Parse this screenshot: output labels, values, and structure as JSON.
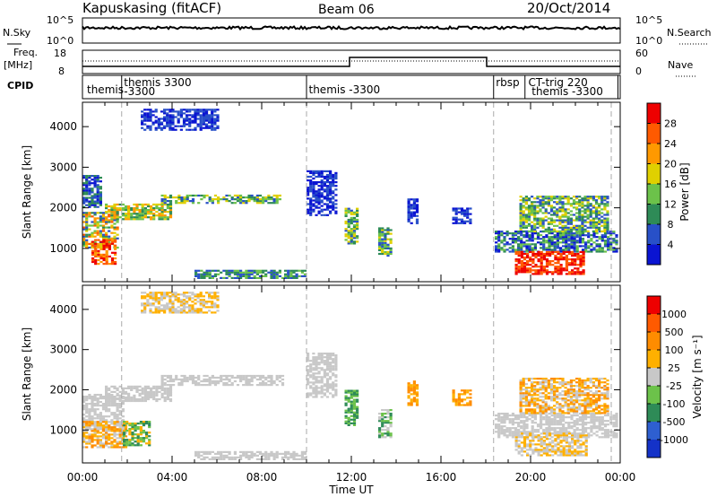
{
  "header": {
    "station": "Kapuskasing (fitACF)",
    "beam": "Beam 06",
    "date": "20/Oct/2014"
  },
  "strip_labels": {
    "nsky": "N.Sky",
    "nsky_ticks": [
      "10^5",
      "10^0"
    ],
    "nsearch": "N.Search",
    "nsearch_ticks": [
      "10^5",
      "10^0"
    ],
    "freq": "Freq.",
    "freq_unit": "[MHz]",
    "freq_ticks": [
      "18",
      "8"
    ],
    "nave": "Nave",
    "nave_ticks": [
      "60",
      "0"
    ],
    "cpid": "CPID"
  },
  "cpid_labels": [
    {
      "text": "themis",
      "t": 0.2
    },
    {
      "text": "themis 3300",
      "t": 1.85
    },
    {
      "text": "-3300",
      "t": 1.85
    },
    {
      "text": "themis -3300",
      "t": 10.1
    },
    {
      "text": "rbsp",
      "t": 18.45
    },
    {
      "text": "CT-trig 220",
      "t": 19.9
    },
    {
      "text": "themis -3300",
      "t": 20.05
    }
  ],
  "cpid_changes": [
    1.75,
    10.0,
    18.35,
    19.75,
    23.9
  ],
  "colors": {
    "power": [
      "#0a14d2",
      "#2850c8",
      "#2e8b57",
      "#6cc24a",
      "#e0d000",
      "#ff9900",
      "#ff5a00",
      "#ee0000"
    ],
    "velocity": [
      "#1432c8",
      "#2e5fd0",
      "#2e8b57",
      "#6cc24a",
      "#c8c8c8",
      "#ffb000",
      "#ff8c00",
      "#ff5a00",
      "#ee0000"
    ],
    "ground_scatter": "#c8c8c8"
  },
  "chart_data": [
    {
      "type": "heatmap",
      "name": "power",
      "ylabel": "Slant Range [km]",
      "yticks": [
        "1000",
        "2000",
        "3000",
        "4000"
      ],
      "ylim": [
        180,
        4600
      ],
      "xlim": [
        0,
        24
      ],
      "colorbar_label": "Power [dB]",
      "colorbar_ticks": [
        "4",
        "8",
        "12",
        "16",
        "20",
        "24",
        "28"
      ],
      "regions": [
        {
          "t0": 0.0,
          "t1": 1.6,
          "r0": 1000,
          "r1": 1900,
          "levels": [
            1,
            2,
            3,
            4,
            5,
            6
          ]
        },
        {
          "t0": 0.4,
          "t1": 1.5,
          "r0": 600,
          "r1": 1200,
          "levels": [
            5,
            6,
            7
          ]
        },
        {
          "t0": 1.0,
          "t1": 4.0,
          "r0": 1700,
          "r1": 2100,
          "levels": [
            2,
            3,
            4,
            5
          ]
        },
        {
          "t0": 3.5,
          "t1": 8.8,
          "r0": 2100,
          "r1": 2300,
          "levels": [
            1,
            2,
            3,
            4
          ]
        },
        {
          "t0": 0.0,
          "t1": 0.8,
          "r0": 2000,
          "r1": 2800,
          "levels": [
            0,
            1,
            2
          ]
        },
        {
          "t0": 2.6,
          "t1": 6.0,
          "r0": 3900,
          "r1": 4400,
          "levels": [
            0,
            1
          ]
        },
        {
          "t0": 5.0,
          "t1": 10.0,
          "r0": 250,
          "r1": 450,
          "levels": [
            1,
            2,
            3
          ]
        },
        {
          "t0": 10.0,
          "t1": 11.3,
          "r0": 1800,
          "r1": 2900,
          "levels": [
            0,
            1
          ]
        },
        {
          "t0": 11.7,
          "t1": 12.3,
          "r0": 1100,
          "r1": 2000,
          "levels": [
            1,
            2,
            3,
            4
          ]
        },
        {
          "t0": 13.2,
          "t1": 13.8,
          "r0": 800,
          "r1": 1500,
          "levels": [
            1,
            2,
            3,
            4
          ]
        },
        {
          "t0": 14.5,
          "t1": 15.0,
          "r0": 1600,
          "r1": 2200,
          "levels": [
            0,
            1
          ]
        },
        {
          "t0": 16.5,
          "t1": 17.3,
          "r0": 1600,
          "r1": 2000,
          "levels": [
            0,
            1
          ]
        },
        {
          "t0": 18.4,
          "t1": 23.8,
          "r0": 900,
          "r1": 1400,
          "levels": [
            0,
            1,
            2,
            3
          ]
        },
        {
          "t0": 19.3,
          "t1": 22.4,
          "r0": 350,
          "r1": 900,
          "levels": [
            6,
            7
          ]
        },
        {
          "t0": 19.5,
          "t1": 23.5,
          "r0": 1400,
          "r1": 2300,
          "levels": [
            1,
            2,
            3,
            4
          ]
        }
      ]
    },
    {
      "type": "heatmap",
      "name": "velocity",
      "ylabel": "Slant Range [km]",
      "yticks": [
        "1000",
        "2000",
        "3000",
        "4000"
      ],
      "ylim": [
        180,
        4600
      ],
      "xlim": [
        0,
        24
      ],
      "xlabel": "Time UT",
      "xticks": [
        "00:00",
        "04:00",
        "08:00",
        "12:00",
        "16:00",
        "20:00",
        "00:00"
      ],
      "colorbar_label": "Velocity [m s⁻¹]",
      "colorbar_ticks": [
        "1000",
        "500",
        "100",
        "25",
        "-25",
        "-100",
        "-500",
        "-1000"
      ],
      "regions": [
        {
          "t0": 0.0,
          "t1": 1.8,
          "r0": 1000,
          "r1": 1900,
          "levels": [
            4
          ]
        },
        {
          "t0": 0.0,
          "t1": 2.0,
          "r0": 550,
          "r1": 1200,
          "levels": [
            4,
            5,
            6
          ]
        },
        {
          "t0": 1.0,
          "t1": 4.0,
          "r0": 1700,
          "r1": 2100,
          "levels": [
            4
          ]
        },
        {
          "t0": 3.5,
          "t1": 9.0,
          "r0": 2100,
          "r1": 2350,
          "levels": [
            4
          ]
        },
        {
          "t0": 1.8,
          "t1": 3.0,
          "r0": 600,
          "r1": 1200,
          "levels": [
            2,
            3,
            5
          ]
        },
        {
          "t0": 2.6,
          "t1": 6.0,
          "r0": 3900,
          "r1": 4400,
          "levels": [
            4,
            5
          ]
        },
        {
          "t0": 5.0,
          "t1": 10.0,
          "r0": 250,
          "r1": 450,
          "levels": [
            4
          ]
        },
        {
          "t0": 10.0,
          "t1": 11.3,
          "r0": 1800,
          "r1": 2900,
          "levels": [
            4
          ]
        },
        {
          "t0": 11.7,
          "t1": 12.3,
          "r0": 1100,
          "r1": 2000,
          "levels": [
            2,
            3
          ]
        },
        {
          "t0": 13.2,
          "t1": 13.8,
          "r0": 800,
          "r1": 1500,
          "levels": [
            2,
            3,
            4
          ]
        },
        {
          "t0": 14.5,
          "t1": 15.0,
          "r0": 1600,
          "r1": 2200,
          "levels": [
            5,
            6
          ]
        },
        {
          "t0": 16.5,
          "t1": 17.3,
          "r0": 1600,
          "r1": 2000,
          "levels": [
            5,
            6
          ]
        },
        {
          "t0": 18.4,
          "t1": 23.8,
          "r0": 800,
          "r1": 1400,
          "levels": [
            4
          ]
        },
        {
          "t0": 19.3,
          "t1": 22.5,
          "r0": 350,
          "r1": 900,
          "levels": [
            4,
            5
          ]
        },
        {
          "t0": 19.5,
          "t1": 23.5,
          "r0": 1400,
          "r1": 2300,
          "levels": [
            4,
            5,
            6
          ]
        }
      ]
    }
  ]
}
